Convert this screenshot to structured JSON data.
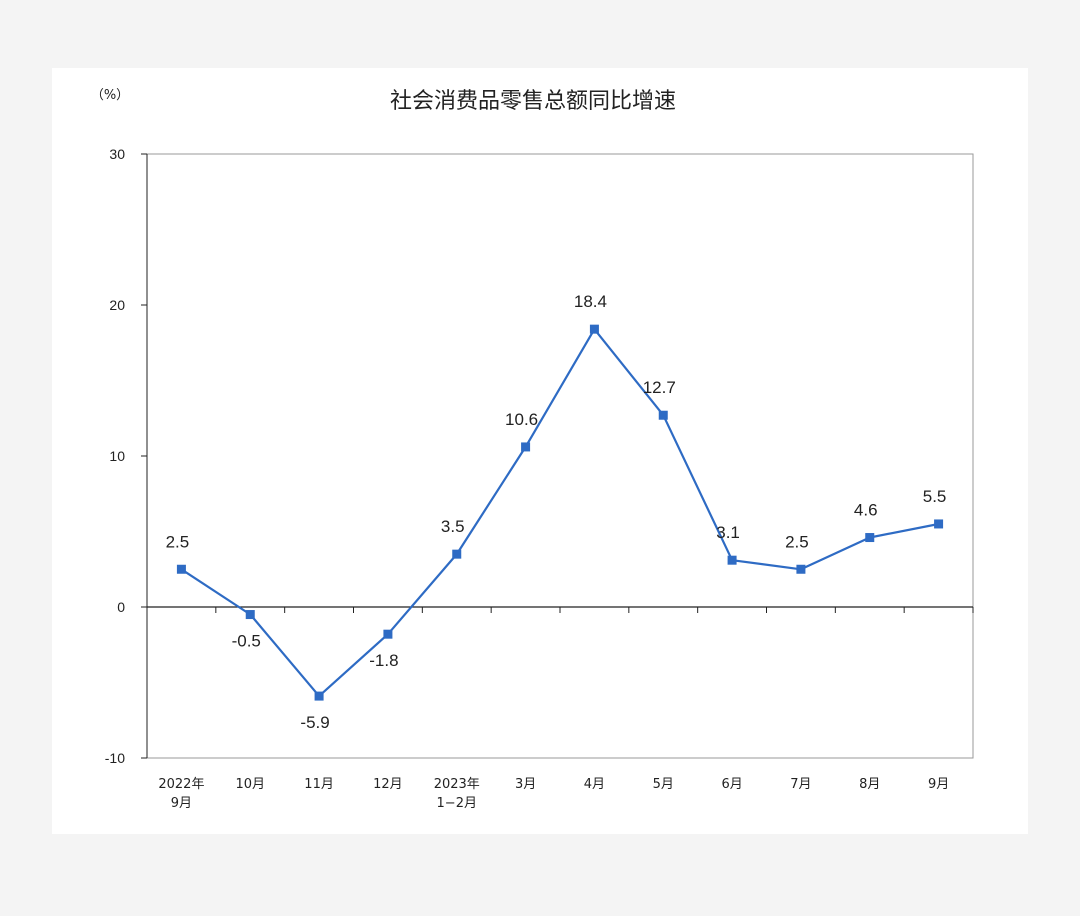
{
  "chart_data": {
    "type": "line",
    "title": "社会消费品零售总额同比增速",
    "unit_label": "（%）",
    "categories": [
      [
        "2022年",
        "9月"
      ],
      [
        "10月"
      ],
      [
        "11月"
      ],
      [
        "12月"
      ],
      [
        "2023年",
        "1−2月"
      ],
      [
        "3月"
      ],
      [
        "4月"
      ],
      [
        "5月"
      ],
      [
        "6月"
      ],
      [
        "7月"
      ],
      [
        "8月"
      ],
      [
        "9月"
      ]
    ],
    "series": [
      {
        "values": [
          2.5,
          -0.5,
          -5.9,
          -1.8,
          3.5,
          10.6,
          18.4,
          12.7,
          3.1,
          2.5,
          4.6,
          5.5
        ]
      }
    ],
    "data_labels": [
      "2.5",
      "-0.5",
      "-5.9",
      "-1.8",
      "3.5",
      "10.6",
      "18.4",
      "12.7",
      "3.1",
      "2.5",
      "4.6",
      "5.5"
    ],
    "yticks": [
      "30",
      "20",
      "10",
      "0",
      "-10"
    ],
    "ylim": [
      -10,
      30
    ],
    "grid": false,
    "line_color": "#2e6bc4",
    "axis_color": "#222222"
  }
}
